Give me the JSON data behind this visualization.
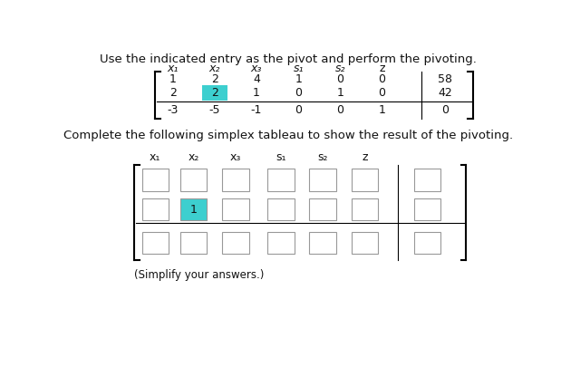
{
  "title": "Use the indicated entry as the pivot and perform the pivoting.",
  "subtitle": "Complete the following simplex tableau to show the result of the pivoting.",
  "col_headers": [
    "x₁",
    "x₂",
    "x₃",
    "s₁",
    "s₂",
    "z"
  ],
  "top_matrix": [
    [
      1,
      2,
      4,
      1,
      0,
      0,
      58
    ],
    [
      2,
      2,
      1,
      0,
      1,
      0,
      42
    ],
    [
      -3,
      -5,
      -1,
      0,
      0,
      1,
      0
    ]
  ],
  "pivot_row": 1,
  "pivot_col": 1,
  "bg_color": "#ffffff",
  "pivot_color": "#3dcfcf",
  "cell_color": "#ffffff",
  "border_color": "#aaaaaa",
  "text_color": "#111111",
  "note_text": "(Simplify your answers.)"
}
